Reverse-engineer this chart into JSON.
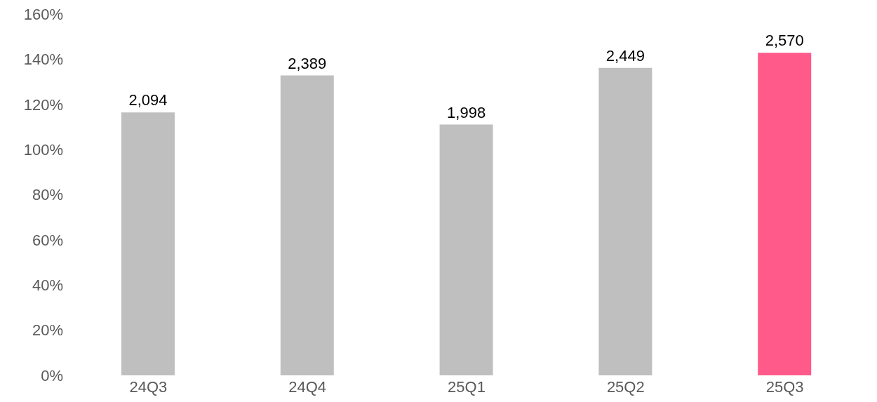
{
  "chart_data": {
    "type": "bar",
    "categories": [
      "24Q3",
      "24Q4",
      "25Q1",
      "25Q2",
      "25Q3"
    ],
    "series": [
      {
        "axis": "y2",
        "values": [
          2094,
          2389,
          1998,
          2449,
          2570
        ],
        "colors": [
          "#bfbfbf",
          "#bfbfbf",
          "#bfbfbf",
          "#bfbfbf",
          "#ff5a8a"
        ],
        "value_labels": [
          "2,094",
          "2,389",
          "1,998",
          "2,449",
          "2,570"
        ]
      }
    ],
    "ylim": [
      0,
      160
    ],
    "yticks": [
      {
        "value": 0,
        "label": "0%"
      },
      {
        "value": 20,
        "label": "20%"
      },
      {
        "value": 40,
        "label": "40%"
      },
      {
        "value": 60,
        "label": "60%"
      },
      {
        "value": 80,
        "label": "80%"
      },
      {
        "value": 100,
        "label": "100%"
      },
      {
        "value": 120,
        "label": "120%"
      },
      {
        "value": 140,
        "label": "140%"
      },
      {
        "value": 160,
        "label": "160%"
      }
    ]
  }
}
